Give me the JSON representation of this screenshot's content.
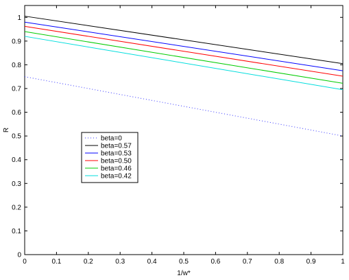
{
  "chart_data": {
    "type": "line",
    "title": "",
    "xlabel": "1/w*",
    "ylabel": "R",
    "xlim": [
      0,
      1
    ],
    "ylim": [
      0,
      1.05
    ],
    "xticks": [
      0,
      0.1,
      0.2,
      0.3,
      0.4,
      0.5,
      0.6,
      0.7,
      0.8,
      0.9,
      1
    ],
    "xtick_labels": [
      "0",
      "0.1",
      "0.2",
      "0.3",
      "0.4",
      "0.5",
      "0.6",
      "0.7",
      "0.8",
      "0.9",
      "1"
    ],
    "yticks": [
      0,
      0.1,
      0.2,
      0.3,
      0.4,
      0.5,
      0.6,
      0.7,
      0.8,
      0.9,
      1
    ],
    "ytick_labels": [
      "0",
      "0.1",
      "0.2",
      "0.3",
      "0.4",
      "0.5",
      "0.6",
      "0.7",
      "0.8",
      "0.9",
      "1"
    ],
    "grid": false,
    "legend_position": "middle-left",
    "series": [
      {
        "name": "beta=0",
        "color": "#3333ff",
        "dash": "dotted",
        "x": [
          0,
          1
        ],
        "y": [
          0.75,
          0.5
        ]
      },
      {
        "name": "beta=0.57",
        "color": "#000000",
        "dash": "solid",
        "x": [
          0,
          1
        ],
        "y": [
          1.005,
          0.805
        ]
      },
      {
        "name": "beta=0.53",
        "color": "#0000ff",
        "dash": "solid",
        "x": [
          0,
          1
        ],
        "y": [
          0.98,
          0.775
        ]
      },
      {
        "name": "beta=0.50",
        "color": "#ff0000",
        "dash": "solid",
        "x": [
          0,
          1
        ],
        "y": [
          0.962,
          0.752
        ]
      },
      {
        "name": "beta=0.46",
        "color": "#00cc00",
        "dash": "solid",
        "x": [
          0,
          1
        ],
        "y": [
          0.94,
          0.722
        ]
      },
      {
        "name": "beta=0.42",
        "color": "#00dddd",
        "dash": "solid",
        "x": [
          0,
          1
        ],
        "y": [
          0.92,
          0.695
        ]
      }
    ]
  }
}
